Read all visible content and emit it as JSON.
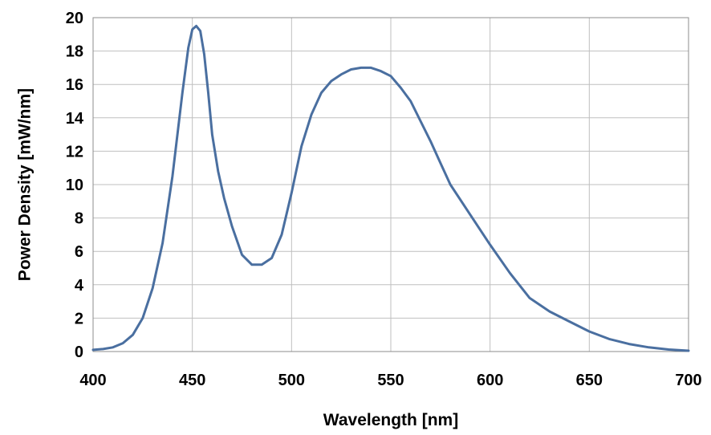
{
  "chart_data": {
    "type": "line",
    "xlabel": "Wavelength [nm]",
    "ylabel": "Power Density [mW/nm]",
    "xlim": [
      400,
      700
    ],
    "ylim": [
      0,
      20
    ],
    "xticks": [
      400,
      450,
      500,
      550,
      600,
      650,
      700
    ],
    "yticks": [
      0,
      2,
      4,
      6,
      8,
      10,
      12,
      14,
      16,
      18,
      20
    ],
    "grid": true,
    "legend": "none",
    "line_color": "#4a6fa0",
    "series": [
      {
        "x": [
          400,
          405,
          410,
          415,
          420,
          425,
          430,
          435,
          440,
          445,
          448,
          450,
          452,
          454,
          456,
          458,
          460,
          463,
          466,
          470,
          475,
          480,
          485,
          490,
          495,
          500,
          505,
          510,
          515,
          520,
          525,
          530,
          535,
          540,
          545,
          550,
          555,
          560,
          565,
          570,
          575,
          580,
          590,
          600,
          610,
          620,
          630,
          640,
          650,
          660,
          670,
          680,
          690,
          700
        ],
        "y": [
          0.1,
          0.15,
          0.25,
          0.5,
          1.0,
          2.0,
          3.8,
          6.5,
          10.5,
          15.5,
          18.2,
          19.3,
          19.5,
          19.2,
          17.8,
          15.5,
          13.0,
          10.8,
          9.2,
          7.5,
          5.8,
          5.2,
          5.2,
          5.6,
          7.0,
          9.5,
          12.3,
          14.2,
          15.5,
          16.2,
          16.6,
          16.9,
          17.0,
          17.0,
          16.8,
          16.5,
          15.8,
          15.0,
          13.8,
          12.6,
          11.3,
          10.0,
          8.2,
          6.4,
          4.7,
          3.2,
          2.4,
          1.8,
          1.2,
          0.75,
          0.45,
          0.25,
          0.12,
          0.05
        ]
      }
    ]
  }
}
